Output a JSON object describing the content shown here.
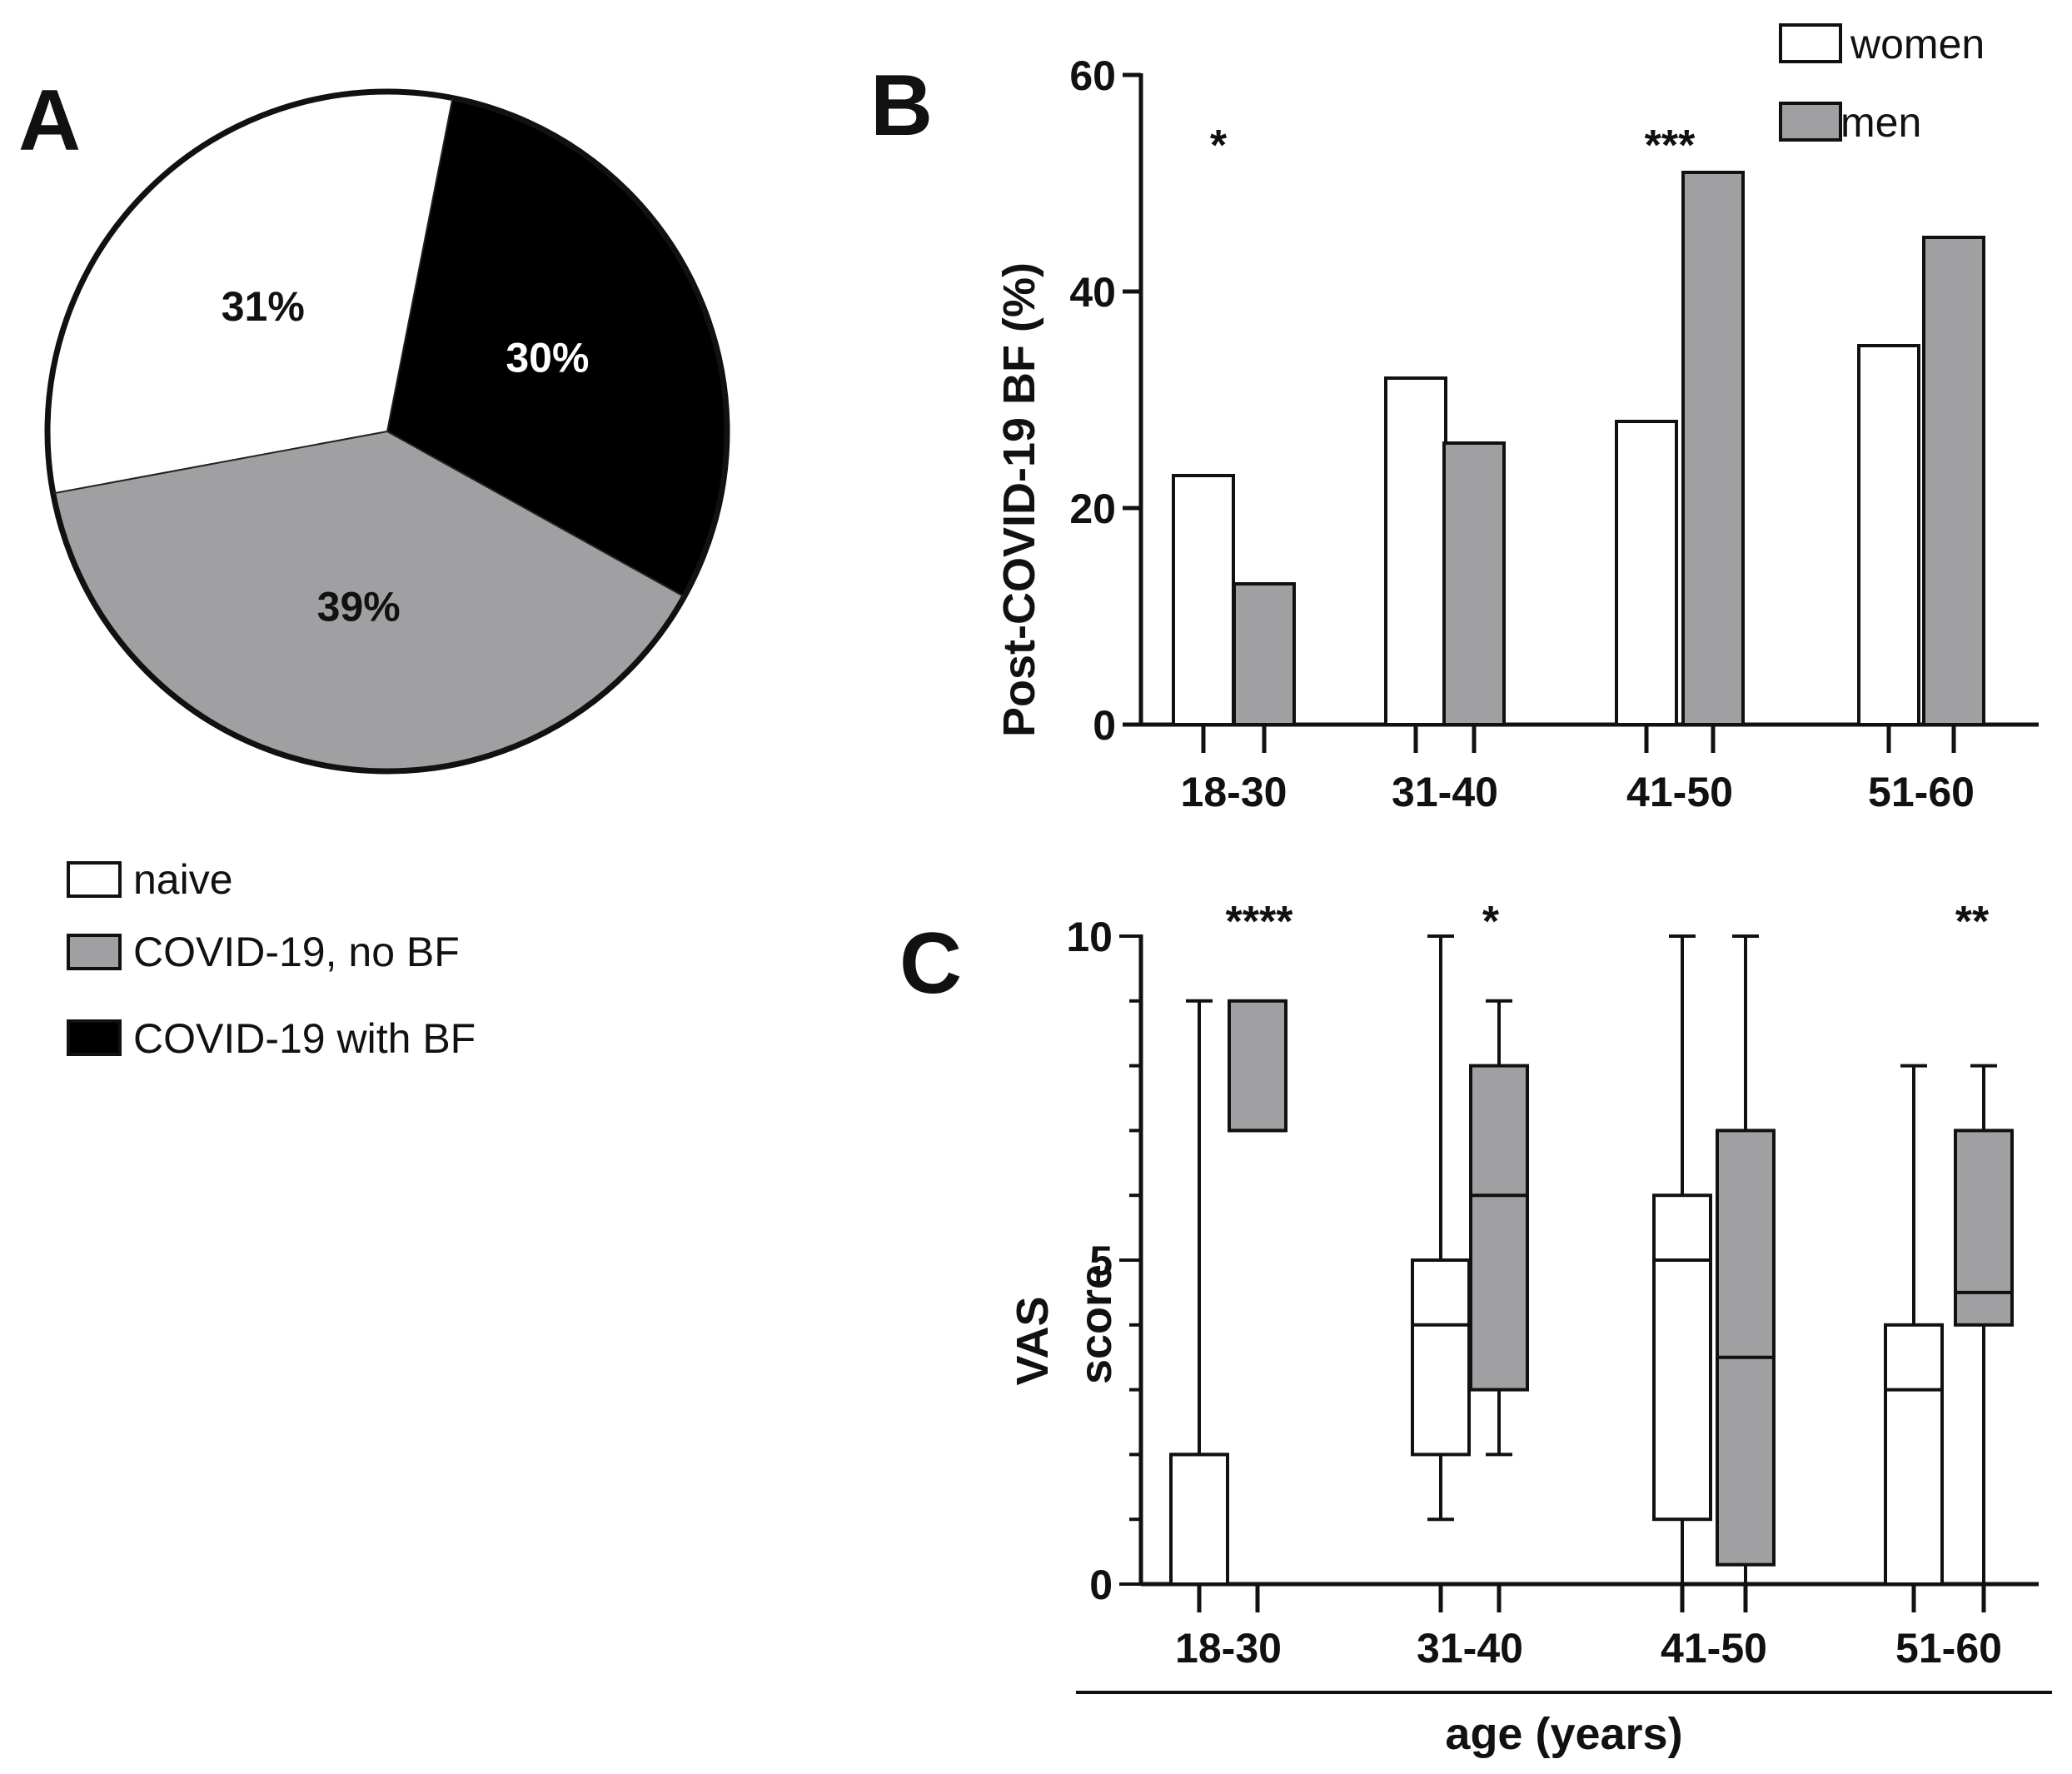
{
  "colors": {
    "naive": "#ffffff",
    "covid_no_bf": "#a0a0a3",
    "covid_with_bf": "#000000",
    "women": "#ffffff",
    "men": "#a0a0a3",
    "stroke": "#111111"
  },
  "chart_data": [
    {
      "panel": "A",
      "type": "pie",
      "slices": [
        {
          "label": "naive",
          "value": 31,
          "display": "31%"
        },
        {
          "label": "COVID-19, no BF",
          "value": 39,
          "display": "39%"
        },
        {
          "label": "COVID-19 with BF",
          "value": 30,
          "display": "30%"
        }
      ],
      "legend_position": "below"
    },
    {
      "panel": "B",
      "type": "bar",
      "categories": [
        "18-30",
        "31-40",
        "41-50",
        "51-60"
      ],
      "series": [
        {
          "name": "women",
          "values": [
            23,
            32,
            28,
            35
          ]
        },
        {
          "name": "men",
          "values": [
            13,
            26,
            51,
            45
          ]
        }
      ],
      "ylabel": "Post-COVID-19 BF (%)",
      "ylim": [
        0,
        60
      ],
      "yticks": [
        0,
        20,
        40,
        60
      ],
      "significance": [
        "*",
        "",
        "***",
        ""
      ],
      "legend_position": "top-right"
    },
    {
      "panel": "C",
      "type": "box",
      "categories": [
        "18-30",
        "31-40",
        "41-50",
        "51-60"
      ],
      "series": [
        {
          "name": "women",
          "boxes": [
            {
              "min": 0,
              "q1": 0,
              "median": 2,
              "q3": 2,
              "max": 9
            },
            {
              "min": 1,
              "q1": 2,
              "median": 4,
              "q3": 5,
              "max": 10
            },
            {
              "min": 0,
              "q1": 1,
              "median": 5,
              "q3": 6,
              "max": 10
            },
            {
              "min": 0,
              "q1": 0,
              "median": 3,
              "q3": 4,
              "max": 8
            }
          ]
        },
        {
          "name": "men",
          "boxes": [
            {
              "min": 7,
              "q1": 7,
              "median": 7,
              "q3": 9,
              "max": 9
            },
            {
              "min": 2,
              "q1": 3,
              "median": 6,
              "q3": 8,
              "max": 9
            },
            {
              "min": 0,
              "q1": 0.3,
              "median": 3.5,
              "q3": 7,
              "max": 10
            },
            {
              "min": 0,
              "q1": 4,
              "median": 4.5,
              "q3": 7,
              "max": 8
            }
          ]
        }
      ],
      "ylabel": "VAS score",
      "ylim": [
        0,
        10
      ],
      "yticks": [
        0,
        5,
        10
      ],
      "xlabel": "age (years)",
      "significance": [
        "****",
        "*",
        "",
        "**"
      ]
    }
  ],
  "labels": {
    "panel_a": "A",
    "panel_b": "B",
    "panel_c": "C",
    "b_ylabel": "Post-COVID-19 BF (%)",
    "c_ylabel_line1": "VAS",
    "c_ylabel_line2": "score",
    "c_xlabel": "age (years)",
    "legend_a": [
      "naive",
      "COVID-19, no BF",
      "COVID-19 with BF"
    ],
    "legend_b": [
      "women",
      "men"
    ]
  }
}
